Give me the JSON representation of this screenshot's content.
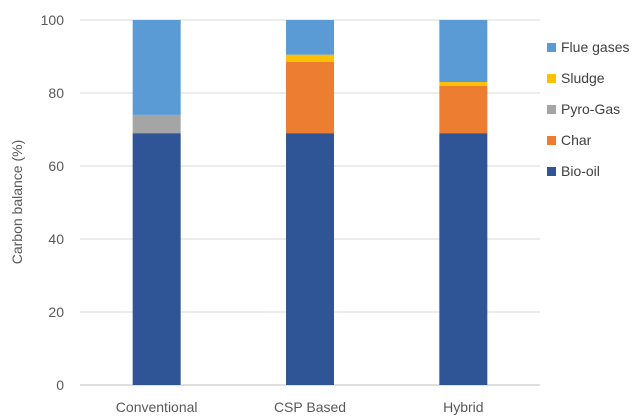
{
  "chart_data": {
    "type": "bar",
    "stacked": true,
    "title": "",
    "xlabel": "",
    "ylabel": "Carbon balance (%)",
    "ylim": [
      0,
      100
    ],
    "yticks": [
      0,
      20,
      40,
      60,
      80,
      100
    ],
    "grid": true,
    "legend_position": "right",
    "categories": [
      "Conventional",
      "CSP Based",
      "Hybrid"
    ],
    "series": [
      {
        "name": "Bio-oil",
        "color": "#2f5597",
        "values": [
          69,
          69,
          69
        ]
      },
      {
        "name": "Char",
        "color": "#ed7d31",
        "values": [
          0,
          19.5,
          13
        ]
      },
      {
        "name": "Pyro-Gas",
        "color": "#a5a5a5",
        "values": [
          5,
          0,
          0
        ]
      },
      {
        "name": "Sludge",
        "color": "#ffc000",
        "values": [
          0,
          2,
          1
        ]
      },
      {
        "name": "Flue gases",
        "color": "#5b9bd5",
        "values": [
          26,
          9.5,
          17
        ]
      }
    ],
    "legend_order": [
      "Flue gases",
      "Sludge",
      "Pyro-Gas",
      "Char",
      "Bio-oil"
    ]
  }
}
